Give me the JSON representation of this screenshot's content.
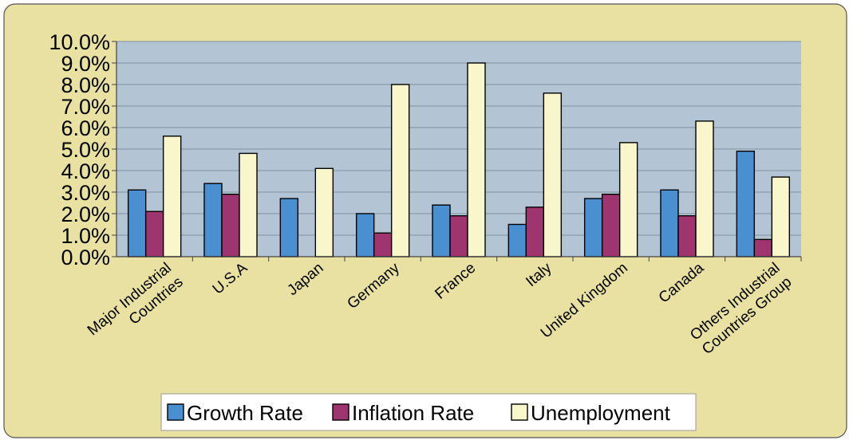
{
  "chart_data": {
    "type": "bar",
    "categories": [
      "Major Industrial Countries",
      "U.S.A",
      "Japan",
      "Germany",
      "France",
      "Italy",
      "United Kingdom",
      "Canada",
      "Others Industrial Countries Group"
    ],
    "category_lines": [
      [
        "Major Industrial",
        "Countries"
      ],
      [
        "U.S.A"
      ],
      [
        "Japan"
      ],
      [
        "Germany"
      ],
      [
        "France"
      ],
      [
        "Italy"
      ],
      [
        "United Kingdom"
      ],
      [
        "Canada"
      ],
      [
        "Others Industrial",
        "Countries Group"
      ]
    ],
    "series": [
      {
        "name": "Growth Rate",
        "color": "#4a8fd0",
        "values": [
          3.1,
          3.4,
          2.7,
          2.0,
          2.4,
          1.5,
          2.7,
          3.1,
          4.9
        ]
      },
      {
        "name": "Inflation Rate",
        "color": "#9e356e",
        "values": [
          2.1,
          2.9,
          0.0,
          1.1,
          1.9,
          2.3,
          2.9,
          1.9,
          0.8
        ]
      },
      {
        "name": "Unemployment",
        "color": "#f8f6ca",
        "values": [
          5.6,
          4.8,
          4.1,
          8.0,
          9.0,
          7.6,
          5.3,
          6.3,
          3.7
        ]
      }
    ],
    "ylim": [
      0,
      10
    ],
    "yticks": [
      "0.0%",
      "1.0%",
      "2.0%",
      "3.0%",
      "4.0%",
      "5.0%",
      "6.0%",
      "7.0%",
      "8.0%",
      "9.0%",
      "10.0%"
    ],
    "y_format": "percent",
    "grid": true,
    "legend_position": "bottom",
    "colors": {
      "panel_background": "#e9e1a2",
      "plot_background": "#b3c5d4",
      "grid": "#7f8f9c",
      "bar_outline": "#000000"
    }
  }
}
